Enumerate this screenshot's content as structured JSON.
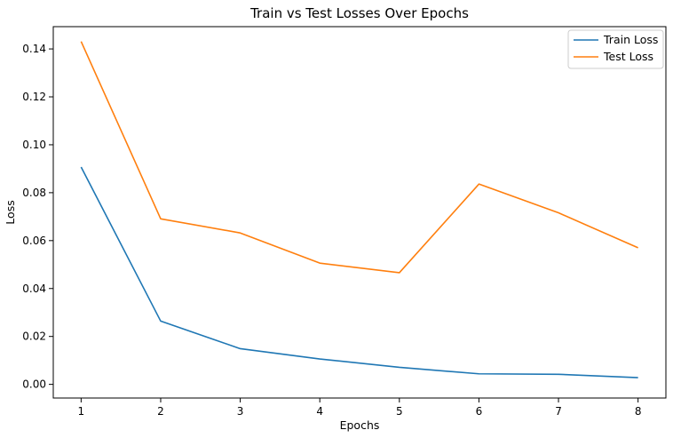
{
  "chart_data": {
    "type": "line",
    "title": "Train vs Test Losses Over Epochs",
    "xlabel": "Epochs",
    "ylabel": "Loss",
    "x": [
      1,
      2,
      3,
      4,
      5,
      6,
      7,
      8
    ],
    "xticks": [
      "1",
      "2",
      "3",
      "4",
      "5",
      "6",
      "7",
      "8"
    ],
    "yticks": [
      "0.00",
      "0.02",
      "0.04",
      "0.06",
      "0.08",
      "0.10",
      "0.12",
      "0.14"
    ],
    "xlim": [
      0.65,
      8.35
    ],
    "ylim": [
      -0.0057,
      0.1493
    ],
    "grid": false,
    "legend_position": "top-right",
    "series": [
      {
        "name": "Train Loss",
        "color": "#1f77b4",
        "values": [
          0.0907,
          0.0264,
          0.0149,
          0.0106,
          0.0071,
          0.0044,
          0.0042,
          0.0028
        ]
      },
      {
        "name": "Test Loss",
        "color": "#ff7f0e",
        "values": [
          0.1431,
          0.0691,
          0.0632,
          0.0506,
          0.0466,
          0.0836,
          0.0716,
          0.057
        ]
      }
    ]
  }
}
